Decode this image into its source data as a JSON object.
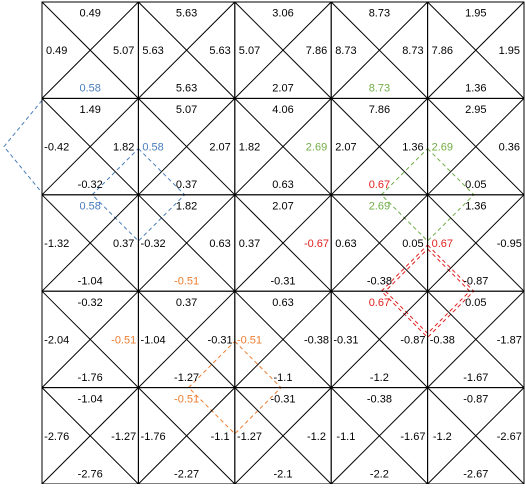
{
  "grid": {
    "rows": 5,
    "cols": 5,
    "cells": [
      [
        {
          "top": "0.49",
          "left": "0.49",
          "right": "5.07",
          "bottom": "0.58"
        },
        {
          "top": "5.63",
          "left": "5.63",
          "right": "5.63",
          "bottom": "5.63"
        },
        {
          "top": "3.06",
          "left": "5.07",
          "right": "7.86",
          "bottom": "2.07"
        },
        {
          "top": "8.73",
          "left": "8.73",
          "right": "8.73",
          "bottom": "8.73"
        },
        {
          "top": "1.95",
          "left": "7.86",
          "right": "1.95",
          "bottom": "1.36"
        }
      ],
      [
        {
          "top": "1.49",
          "left": "-0.42",
          "right": "1.82",
          "bottom": "-0.32"
        },
        {
          "top": "5.07",
          "left": "0.58",
          "right": "2.07",
          "bottom": "0.37"
        },
        {
          "top": "4.06",
          "left": "1.82",
          "right": "2.69",
          "bottom": "0.63"
        },
        {
          "top": "7.86",
          "left": "2.07",
          "right": "1.36",
          "bottom": "0.67"
        },
        {
          "top": "2.95",
          "left": "2.69",
          "right": "0.36",
          "bottom": "0.05"
        }
      ],
      [
        {
          "top": "0.58",
          "left": "-1.32",
          "right": "0.37",
          "bottom": "-1.04"
        },
        {
          "top": "1.82",
          "left": "-0.32",
          "right": "0.63",
          "bottom": "-0.51"
        },
        {
          "top": "2.07",
          "left": "0.37",
          "right": "-0.67",
          "bottom": "-0.31"
        },
        {
          "top": "2.69",
          "left": "0.63",
          "right": "0.05",
          "bottom": "-0.38"
        },
        {
          "top": "1.36",
          "left": "0.67",
          "right": "-0.95",
          "bottom": "-0.87"
        }
      ],
      [
        {
          "top": "-0.32",
          "left": "-2.04",
          "right": "-0.51",
          "bottom": "-1.76"
        },
        {
          "top": "0.37",
          "left": "-1.04",
          "right": "-0.31",
          "bottom": "-1.27"
        },
        {
          "top": "0.63",
          "left": "-0.51",
          "right": "-0.38",
          "bottom": "-1.1"
        },
        {
          "top": "0.67",
          "left": "-0.31",
          "right": "-0.87",
          "bottom": "-1.2"
        },
        {
          "top": "0.05",
          "left": "-0.38",
          "right": "-1.87",
          "bottom": "-1.67"
        }
      ],
      [
        {
          "top": "-1.04",
          "left": "-2.76",
          "right": "-1.27",
          "bottom": "-2.76"
        },
        {
          "top": "-0.51",
          "left": "-1.76",
          "right": "-1.1",
          "bottom": "-2.27"
        },
        {
          "top": "-0.31",
          "left": "-1.27",
          "right": "-1.2",
          "bottom": "-2.1"
        },
        {
          "top": "-0.38",
          "left": "-1.1",
          "right": "-1.67",
          "bottom": "-2.2"
        },
        {
          "top": "-0.87",
          "left": "-1.2",
          "right": "-2.67",
          "bottom": "-2.67"
        }
      ]
    ]
  },
  "colors": {
    "line": "#000000",
    "text": "#000000",
    "blue": "#4a7ebb",
    "green": "#70ad47",
    "red": "#e02020",
    "orange": "#ed7d31"
  },
  "highlights": [
    {
      "row": 0,
      "col": 0,
      "side": "bottom",
      "color": "blue"
    },
    {
      "row": 1,
      "col": 1,
      "side": "left",
      "color": "blue"
    },
    {
      "row": 2,
      "col": 0,
      "side": "top",
      "color": "blue"
    },
    {
      "row": 0,
      "col": 3,
      "side": "bottom",
      "color": "green"
    },
    {
      "row": 1,
      "col": 2,
      "side": "right",
      "color": "green"
    },
    {
      "row": 1,
      "col": 4,
      "side": "left",
      "color": "green"
    },
    {
      "row": 2,
      "col": 3,
      "side": "top",
      "color": "green"
    },
    {
      "row": 1,
      "col": 3,
      "side": "bottom",
      "color": "red"
    },
    {
      "row": 2,
      "col": 2,
      "side": "right",
      "color": "red"
    },
    {
      "row": 2,
      "col": 4,
      "side": "left",
      "color": "red"
    },
    {
      "row": 3,
      "col": 3,
      "side": "top",
      "color": "red"
    },
    {
      "row": 2,
      "col": 1,
      "side": "bottom",
      "color": "orange"
    },
    {
      "row": 3,
      "col": 0,
      "side": "right",
      "color": "orange"
    },
    {
      "row": 3,
      "col": 2,
      "side": "left",
      "color": "orange"
    },
    {
      "row": 4,
      "col": 1,
      "side": "top",
      "color": "orange"
    }
  ],
  "outlines": [
    {
      "color": "blue",
      "shape": "left-edge-diamond"
    },
    {
      "color": "blue",
      "shape": "diamond",
      "row": 1,
      "col": 0
    },
    {
      "color": "green",
      "shape": "diamond",
      "row": 1,
      "col": 3
    },
    {
      "color": "red",
      "shape": "diamond",
      "row": 2,
      "col": 3
    },
    {
      "color": "orange",
      "shape": "diamond",
      "row": 3,
      "col": 1
    }
  ]
}
